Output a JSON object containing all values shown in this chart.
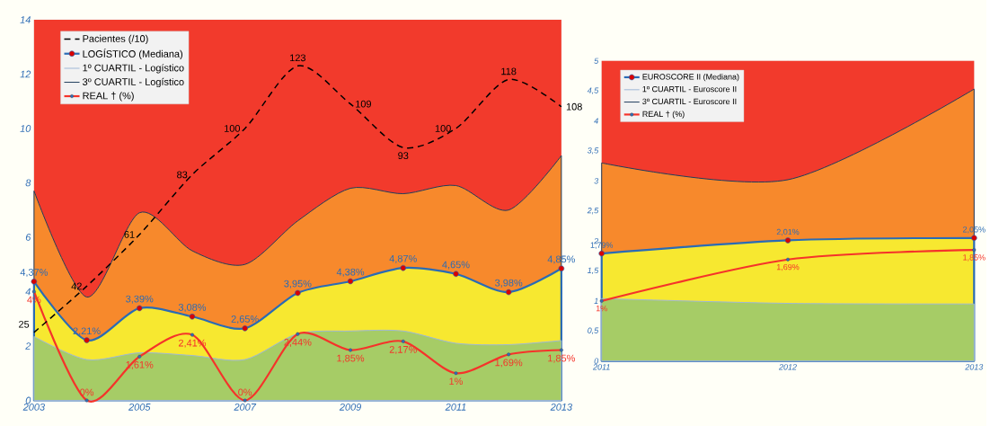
{
  "chart_data": [
    {
      "type": "line",
      "x": [
        2003,
        2004,
        2005,
        2006,
        2007,
        2008,
        2009,
        2010,
        2011,
        2012,
        2013
      ],
      "xlim": [
        2003,
        2013
      ],
      "xticks": [
        2003,
        2005,
        2007,
        2009,
        2011,
        2013
      ],
      "ylim": [
        0,
        14
      ],
      "yticks": [
        0,
        2,
        4,
        6,
        8,
        10,
        12,
        14
      ],
      "y2lim": [
        0,
        140
      ],
      "grid": true,
      "legend": "top left",
      "bands": [
        {
          "axis": "y",
          "from": 0,
          "to": 14,
          "color": "#f23a2c"
        }
      ],
      "series": [
        {
          "name": "Pacientes (/10)",
          "axis": "y2",
          "color": "#000000",
          "line_style": "dashed",
          "values": [
            25,
            42,
            61,
            83,
            100,
            123,
            109,
            93,
            100,
            118,
            108
          ],
          "value_labels": [
            "25",
            "42",
            "61",
            "83",
            "100",
            "123",
            "109",
            "93",
            "100",
            "118",
            "108"
          ]
        },
        {
          "name": "LOGÍSTICO (Mediana)",
          "type": "area",
          "color": "#f7e830",
          "marker": "circle",
          "values": [
            4.37,
            2.21,
            3.39,
            3.08,
            2.65,
            3.95,
            4.38,
            4.87,
            4.65,
            3.98,
            4.85
          ],
          "value_labels": [
            "4,37%",
            "2,21%",
            "3,39%",
            "3,08%",
            "2,65%",
            "3,95%",
            "4,38%",
            "4,87%",
            "4,65%",
            "3,98%",
            "4,85%"
          ]
        },
        {
          "name": "1º CUARTIL - Logístico",
          "type": "area",
          "color": "#a6cc66",
          "values": [
            2.35,
            1.5,
            1.75,
            1.65,
            1.5,
            2.45,
            2.55,
            2.55,
            2.1,
            2.05,
            2.2
          ]
        },
        {
          "name": "3º CUARTIL - Logístico",
          "type": "area",
          "color": "#f7892c",
          "values": [
            7.7,
            3.8,
            6.9,
            5.5,
            5.0,
            6.6,
            7.8,
            7.6,
            7.9,
            7.0,
            9.0
          ]
        },
        {
          "name": "REAL † (%)",
          "color": "#f5332a",
          "marker": "circle",
          "values": [
            4,
            0,
            1.61,
            2.41,
            0,
            2.44,
            1.85,
            2.17,
            1,
            1.69,
            1.85
          ],
          "value_labels": [
            "4%",
            "0%",
            "1,61%",
            "2,41%",
            "0%",
            "2,44%",
            "1,85%",
            "2,17%",
            "1%",
            "1,69%",
            "1,85%"
          ]
        }
      ]
    },
    {
      "type": "line",
      "x": [
        2011,
        2012,
        2013
      ],
      "xlim": [
        2011,
        2013
      ],
      "xticks": [
        2011,
        2012,
        2013
      ],
      "ylim": [
        0,
        5
      ],
      "yticks": [
        0,
        {
          "value": 0.5,
          "label": "0,5"
        },
        1,
        {
          "value": 1.5,
          "label": "1,5"
        },
        2,
        {
          "value": 2.5,
          "label": "2,5"
        },
        3,
        {
          "value": 3.5,
          "label": "3,5"
        },
        4,
        {
          "value": 4.5,
          "label": "4,5"
        },
        5
      ],
      "grid": true,
      "legend": "top left",
      "bands": [
        {
          "axis": "y",
          "from": 0,
          "to": 5,
          "color": "#f23a2c"
        }
      ],
      "series": [
        {
          "name": "EUROSCORE II (Mediana)",
          "type": "area",
          "color": "#f7e830",
          "marker": "circle",
          "values": [
            1.79,
            2.01,
            2.05
          ],
          "value_labels": [
            "1,79%",
            "2,01%",
            "2,05%"
          ]
        },
        {
          "name": "1º CUARTIL - Euroscore II",
          "type": "area",
          "color": "#a6cc66",
          "values": [
            1.04,
            0.96,
            0.95
          ]
        },
        {
          "name": "3º CUARTIL - Euroscore II",
          "type": "area",
          "color": "#f7892c",
          "values": [
            3.3,
            3.02,
            4.53
          ]
        },
        {
          "name": "REAL † (%)",
          "color": "#f5332a",
          "marker": "circle",
          "values": [
            1,
            1.69,
            1.85
          ],
          "value_labels": [
            "1%",
            "1,69%",
            "1,85%"
          ]
        }
      ]
    }
  ]
}
